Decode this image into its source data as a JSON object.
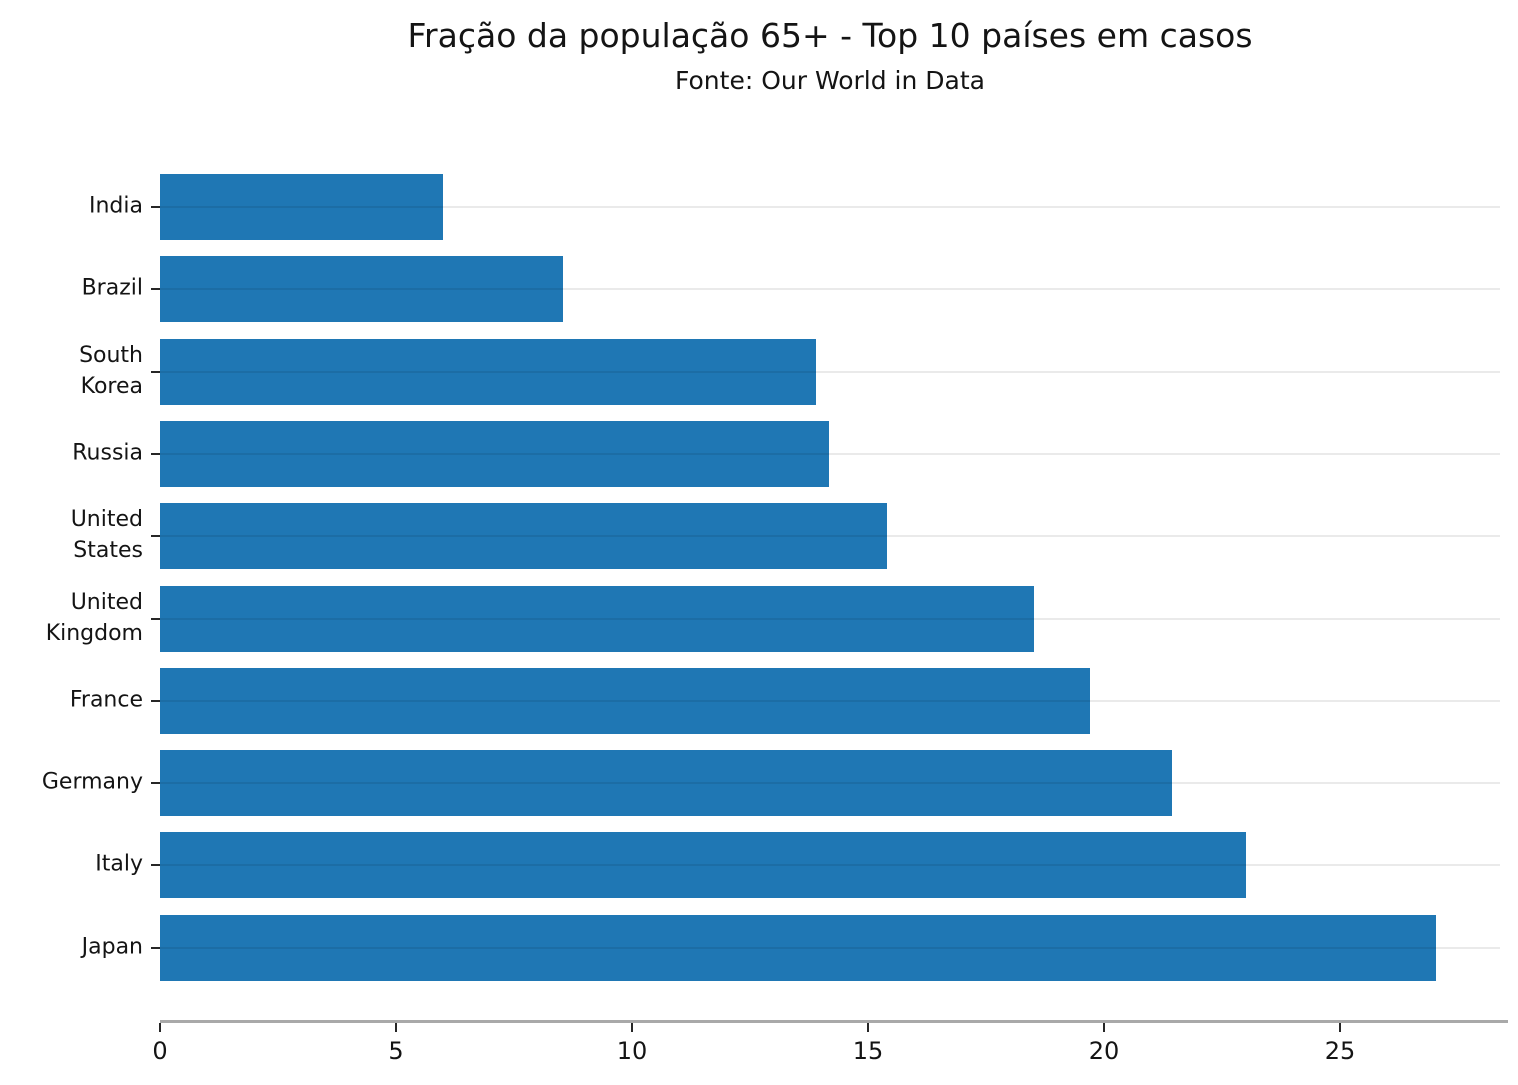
{
  "chart_data": {
    "type": "bar",
    "orientation": "horizontal",
    "title": "Fração da população 65+ - Top 10 países em casos",
    "subtitle": "Fonte: Our World in Data",
    "categories": [
      "India",
      "Brazil",
      "South\nKorea",
      "Russia",
      "United\nStates",
      "United\nKingdom",
      "France",
      "Germany",
      "Italy",
      "Japan"
    ],
    "values": [
      5.99,
      8.55,
      13.91,
      14.18,
      15.41,
      18.52,
      19.72,
      21.45,
      23.02,
      27.05
    ],
    "xlabel": "",
    "ylabel": "",
    "xlim": [
      0,
      28.4
    ],
    "xticks": [
      0,
      5,
      10,
      15,
      20,
      25
    ],
    "grid": "horizontal-category-gridlines",
    "legend": "none",
    "colors": {
      "bar": "#1f77b4",
      "gridline": "rgba(0,0,0,0.082)",
      "spine": "#a9a9a9",
      "tick": "#262626",
      "text": "#141414",
      "background": "#ffffff"
    }
  }
}
